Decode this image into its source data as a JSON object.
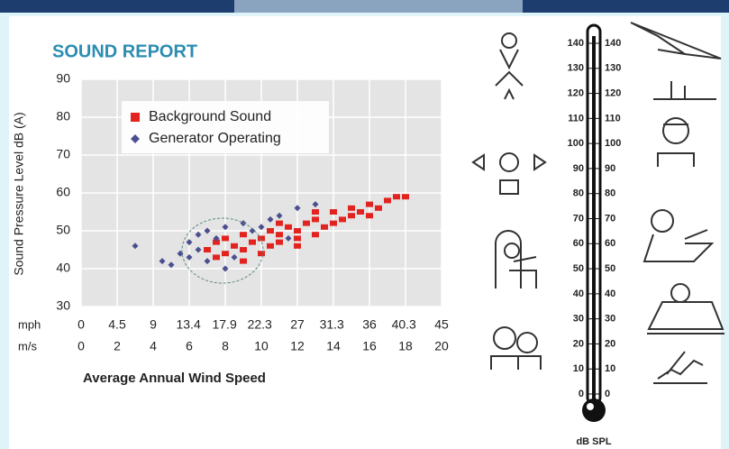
{
  "chart_data": {
    "type": "scatter",
    "title": "SOUND REPORT",
    "ylabel": "Sound Pressure Level dB (A)",
    "xlabel": "Average Annual Wind Speed",
    "xunit": "m/s",
    "x2unit": "mph",
    "xlim": [
      0,
      20
    ],
    "xticks": [
      0,
      2,
      4,
      6,
      8,
      10,
      12,
      14,
      16,
      18,
      20
    ],
    "x2lim": [
      0,
      45
    ],
    "x2ticks": [
      0,
      4.5,
      9,
      13.4,
      17.9,
      22.3,
      27,
      31.3,
      36,
      40.3,
      45
    ],
    "ylim": [
      30,
      90
    ],
    "yticks": [
      30,
      40,
      50,
      60,
      70,
      80,
      90
    ],
    "grid": true,
    "legend": "upper-left",
    "series": [
      {
        "name": "Background Sound",
        "color": "#e3231f",
        "x": [
          7,
          7.5,
          8,
          8,
          8.5,
          9,
          9,
          9.5,
          10,
          10,
          10.5,
          10.5,
          11,
          11,
          11.5,
          12,
          12,
          12.5,
          13,
          13,
          13.5,
          14,
          14,
          14.5,
          15,
          15,
          15.5,
          16,
          16.5,
          17,
          17.5,
          18,
          7.5,
          9,
          11,
          12,
          13,
          16
        ],
        "values": [
          45,
          47,
          44,
          48,
          46,
          45,
          49,
          47,
          44,
          48,
          46,
          50,
          47,
          49,
          51,
          48,
          50,
          52,
          49,
          53,
          51,
          52,
          55,
          53,
          54,
          56,
          55,
          57,
          56,
          58,
          59,
          59,
          43,
          42,
          52,
          46,
          55,
          54
        ]
      },
      {
        "name": "Generator Operating",
        "color": "#4b4f8f",
        "x": [
          3,
          4.5,
          5,
          5.5,
          6,
          6,
          6.5,
          7,
          7,
          7.5,
          8,
          8.5,
          9,
          9.5,
          10,
          10.5,
          11,
          11.5,
          12,
          13,
          6.5,
          8
        ],
        "values": [
          46,
          42,
          41,
          44,
          43,
          47,
          45,
          42,
          50,
          48,
          51,
          43,
          52,
          50,
          51,
          53,
          54,
          48,
          56,
          57,
          49,
          40
        ]
      }
    ]
  },
  "scale": {
    "ticks": [
      0,
      10,
      20,
      30,
      40,
      50,
      60,
      70,
      80,
      90,
      100,
      110,
      120,
      130,
      140
    ],
    "label": "dB SPL"
  }
}
